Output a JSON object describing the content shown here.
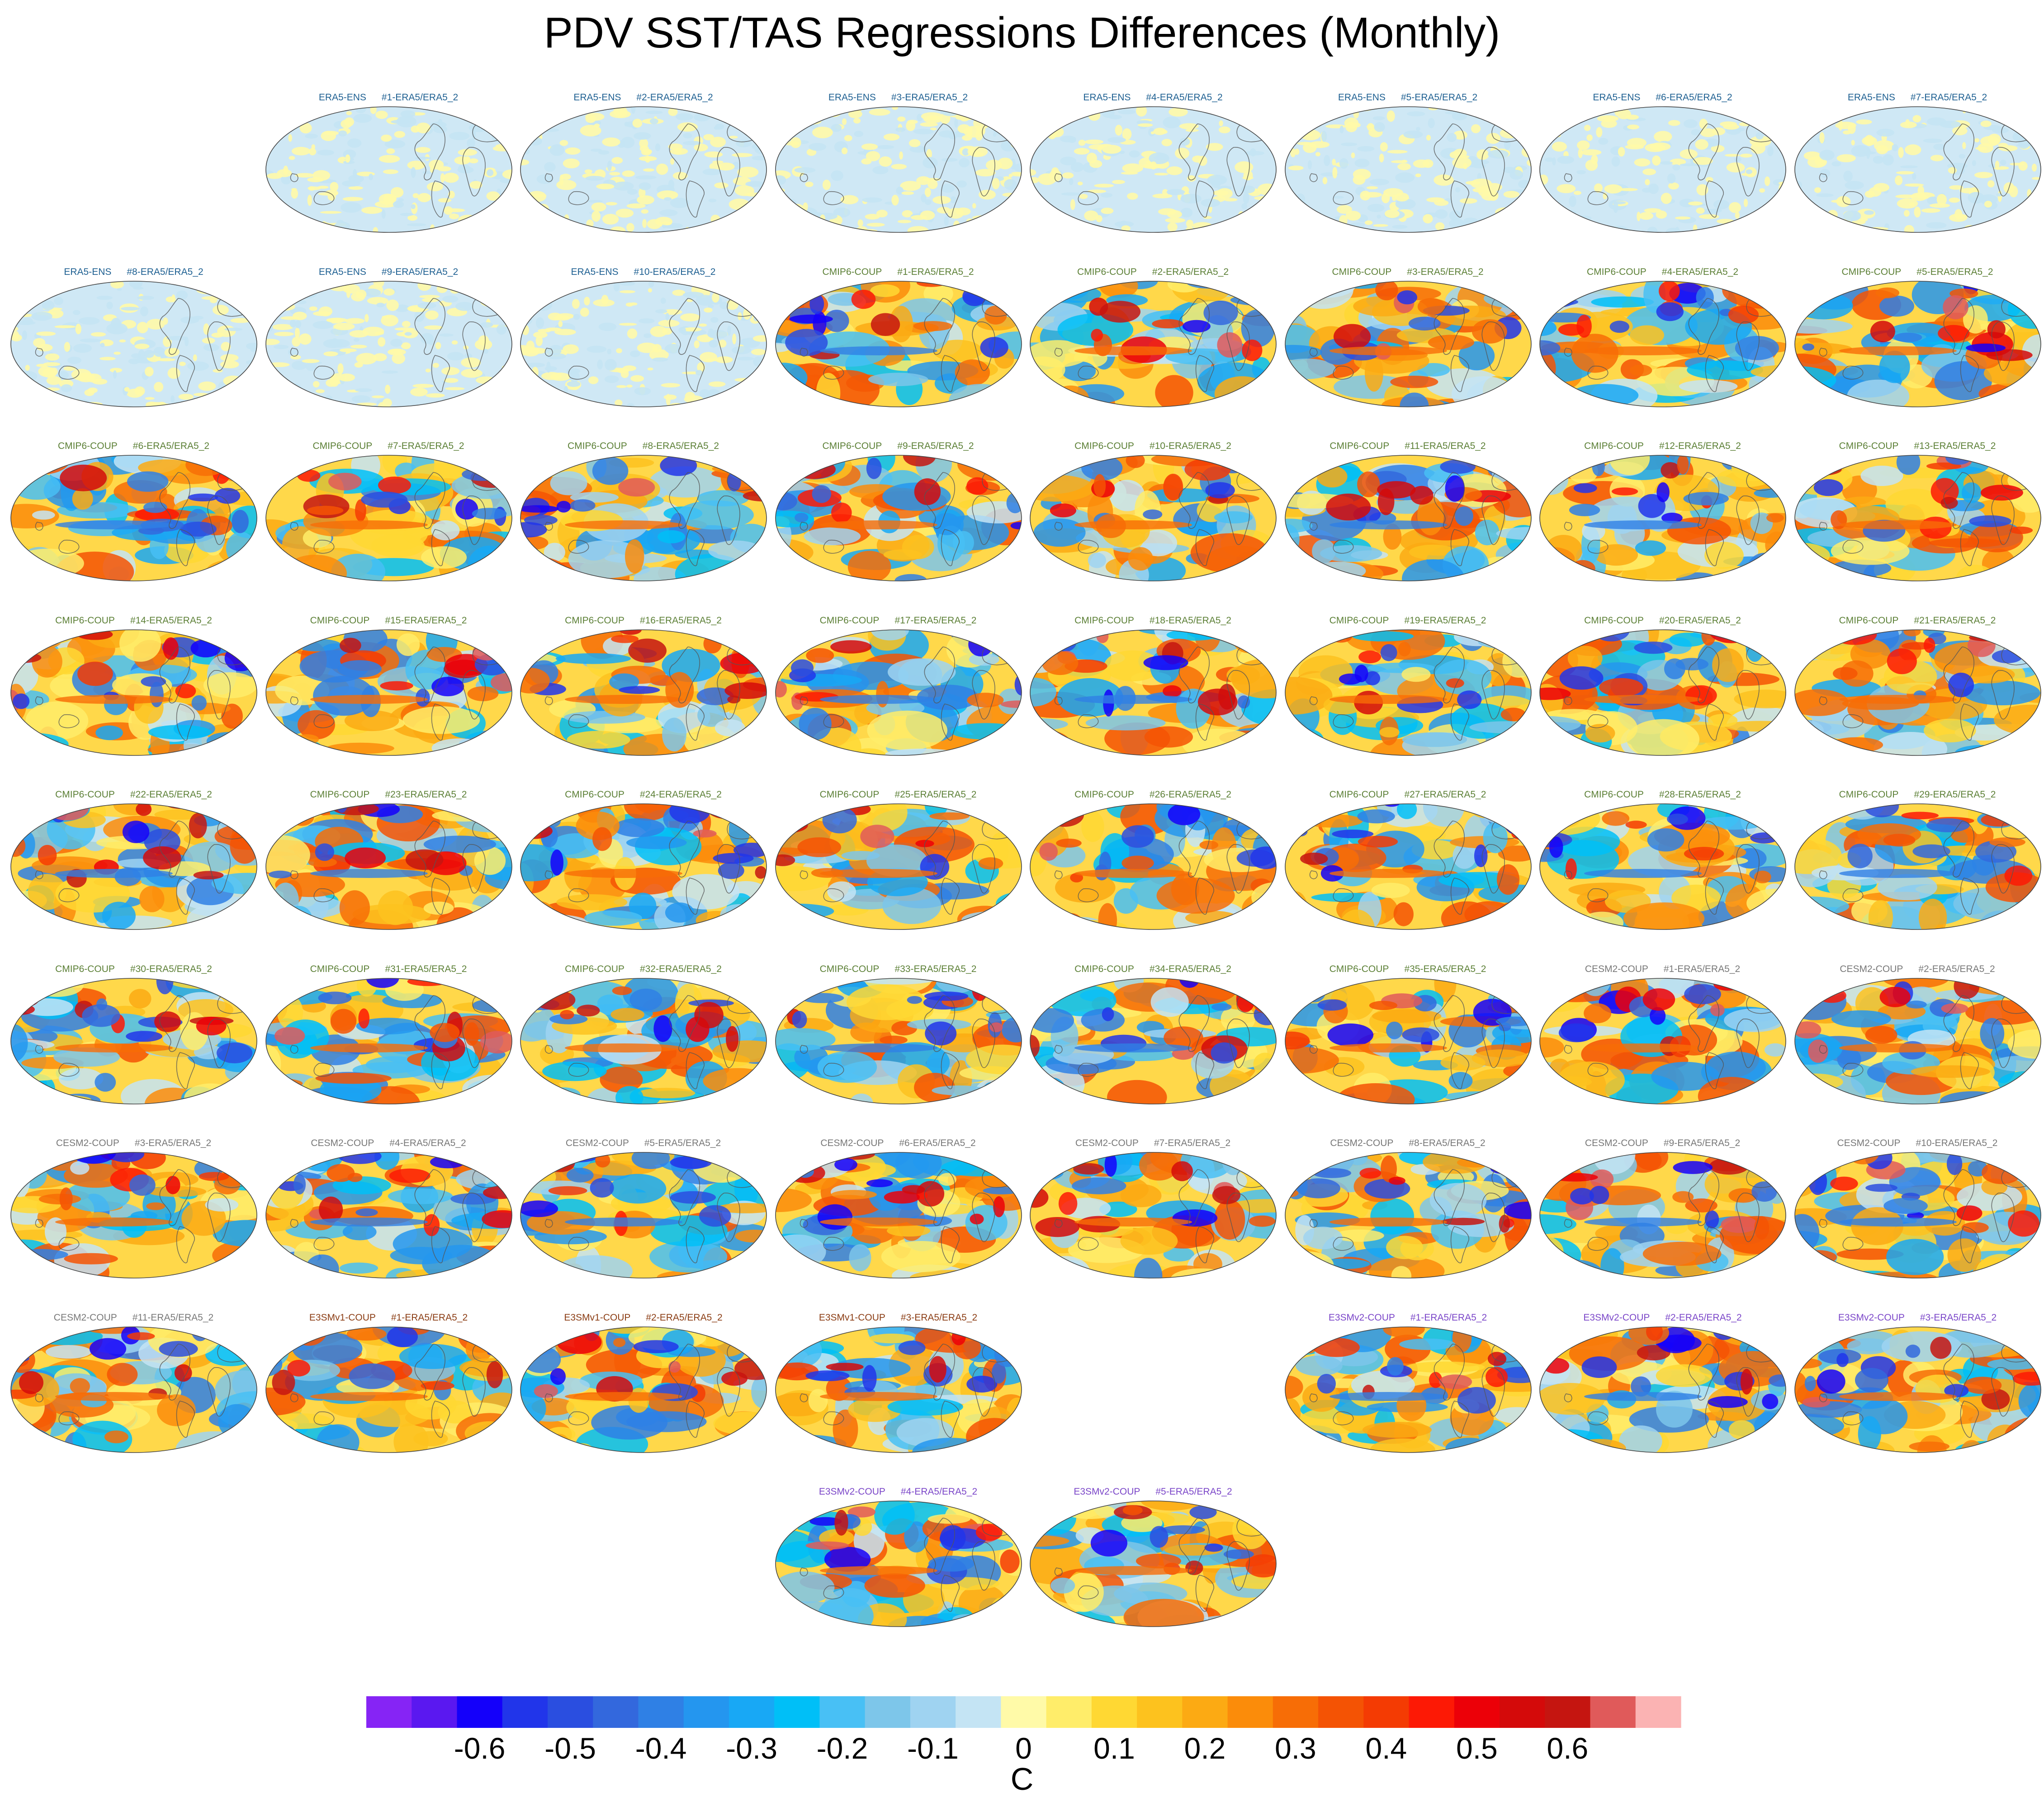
{
  "title": "PDV SST/TAS Regressions Differences (Monthly)",
  "colors": {
    "ERA5-ENS": "#1d5f91",
    "CMIP6-COUP": "#5b7f35",
    "CESM2-COUP": "#777777",
    "E3SMv1-COUP": "#8a3b12",
    "E3SMv2-COUP": "#7a45c8"
  },
  "panels": [
    {
      "ens": "ERA5-ENS",
      "member": "#1-ERA5/ERA5_2",
      "row": 0,
      "col": 1
    },
    {
      "ens": "ERA5-ENS",
      "member": "#2-ERA5/ERA5_2",
      "row": 0,
      "col": 2
    },
    {
      "ens": "ERA5-ENS",
      "member": "#3-ERA5/ERA5_2",
      "row": 0,
      "col": 3
    },
    {
      "ens": "ERA5-ENS",
      "member": "#4-ERA5/ERA5_2",
      "row": 0,
      "col": 4
    },
    {
      "ens": "ERA5-ENS",
      "member": "#5-ERA5/ERA5_2",
      "row": 0,
      "col": 5
    },
    {
      "ens": "ERA5-ENS",
      "member": "#6-ERA5/ERA5_2",
      "row": 0,
      "col": 6
    },
    {
      "ens": "ERA5-ENS",
      "member": "#7-ERA5/ERA5_2",
      "row": 0,
      "col": 7
    },
    {
      "ens": "ERA5-ENS",
      "member": "#8-ERA5/ERA5_2",
      "row": 1,
      "col": 0
    },
    {
      "ens": "ERA5-ENS",
      "member": "#9-ERA5/ERA5_2",
      "row": 1,
      "col": 1
    },
    {
      "ens": "ERA5-ENS",
      "member": "#10-ERA5/ERA5_2",
      "row": 1,
      "col": 2
    },
    {
      "ens": "CMIP6-COUP",
      "member": "#1-ERA5/ERA5_2",
      "row": 1,
      "col": 3
    },
    {
      "ens": "CMIP6-COUP",
      "member": "#2-ERA5/ERA5_2",
      "row": 1,
      "col": 4
    },
    {
      "ens": "CMIP6-COUP",
      "member": "#3-ERA5/ERA5_2",
      "row": 1,
      "col": 5
    },
    {
      "ens": "CMIP6-COUP",
      "member": "#4-ERA5/ERA5_2",
      "row": 1,
      "col": 6
    },
    {
      "ens": "CMIP6-COUP",
      "member": "#5-ERA5/ERA5_2",
      "row": 1,
      "col": 7
    },
    {
      "ens": "CMIP6-COUP",
      "member": "#6-ERA5/ERA5_2",
      "row": 2,
      "col": 0
    },
    {
      "ens": "CMIP6-COUP",
      "member": "#7-ERA5/ERA5_2",
      "row": 2,
      "col": 1
    },
    {
      "ens": "CMIP6-COUP",
      "member": "#8-ERA5/ERA5_2",
      "row": 2,
      "col": 2
    },
    {
      "ens": "CMIP6-COUP",
      "member": "#9-ERA5/ERA5_2",
      "row": 2,
      "col": 3
    },
    {
      "ens": "CMIP6-COUP",
      "member": "#10-ERA5/ERA5_2",
      "row": 2,
      "col": 4
    },
    {
      "ens": "CMIP6-COUP",
      "member": "#11-ERA5/ERA5_2",
      "row": 2,
      "col": 5
    },
    {
      "ens": "CMIP6-COUP",
      "member": "#12-ERA5/ERA5_2",
      "row": 2,
      "col": 6
    },
    {
      "ens": "CMIP6-COUP",
      "member": "#13-ERA5/ERA5_2",
      "row": 2,
      "col": 7
    },
    {
      "ens": "CMIP6-COUP",
      "member": "#14-ERA5/ERA5_2",
      "row": 3,
      "col": 0
    },
    {
      "ens": "CMIP6-COUP",
      "member": "#15-ERA5/ERA5_2",
      "row": 3,
      "col": 1
    },
    {
      "ens": "CMIP6-COUP",
      "member": "#16-ERA5/ERA5_2",
      "row": 3,
      "col": 2
    },
    {
      "ens": "CMIP6-COUP",
      "member": "#17-ERA5/ERA5_2",
      "row": 3,
      "col": 3
    },
    {
      "ens": "CMIP6-COUP",
      "member": "#18-ERA5/ERA5_2",
      "row": 3,
      "col": 4
    },
    {
      "ens": "CMIP6-COUP",
      "member": "#19-ERA5/ERA5_2",
      "row": 3,
      "col": 5
    },
    {
      "ens": "CMIP6-COUP",
      "member": "#20-ERA5/ERA5_2",
      "row": 3,
      "col": 6
    },
    {
      "ens": "CMIP6-COUP",
      "member": "#21-ERA5/ERA5_2",
      "row": 3,
      "col": 7
    },
    {
      "ens": "CMIP6-COUP",
      "member": "#22-ERA5/ERA5_2",
      "row": 4,
      "col": 0
    },
    {
      "ens": "CMIP6-COUP",
      "member": "#23-ERA5/ERA5_2",
      "row": 4,
      "col": 1
    },
    {
      "ens": "CMIP6-COUP",
      "member": "#24-ERA5/ERA5_2",
      "row": 4,
      "col": 2
    },
    {
      "ens": "CMIP6-COUP",
      "member": "#25-ERA5/ERA5_2",
      "row": 4,
      "col": 3
    },
    {
      "ens": "CMIP6-COUP",
      "member": "#26-ERA5/ERA5_2",
      "row": 4,
      "col": 4
    },
    {
      "ens": "CMIP6-COUP",
      "member": "#27-ERA5/ERA5_2",
      "row": 4,
      "col": 5
    },
    {
      "ens": "CMIP6-COUP",
      "member": "#28-ERA5/ERA5_2",
      "row": 4,
      "col": 6
    },
    {
      "ens": "CMIP6-COUP",
      "member": "#29-ERA5/ERA5_2",
      "row": 4,
      "col": 7
    },
    {
      "ens": "CMIP6-COUP",
      "member": "#30-ERA5/ERA5_2",
      "row": 5,
      "col": 0
    },
    {
      "ens": "CMIP6-COUP",
      "member": "#31-ERA5/ERA5_2",
      "row": 5,
      "col": 1
    },
    {
      "ens": "CMIP6-COUP",
      "member": "#32-ERA5/ERA5_2",
      "row": 5,
      "col": 2
    },
    {
      "ens": "CMIP6-COUP",
      "member": "#33-ERA5/ERA5_2",
      "row": 5,
      "col": 3
    },
    {
      "ens": "CMIP6-COUP",
      "member": "#34-ERA5/ERA5_2",
      "row": 5,
      "col": 4
    },
    {
      "ens": "CMIP6-COUP",
      "member": "#35-ERA5/ERA5_2",
      "row": 5,
      "col": 5
    },
    {
      "ens": "CESM2-COUP",
      "member": "#1-ERA5/ERA5_2",
      "row": 5,
      "col": 6
    },
    {
      "ens": "CESM2-COUP",
      "member": "#2-ERA5/ERA5_2",
      "row": 5,
      "col": 7
    },
    {
      "ens": "CESM2-COUP",
      "member": "#3-ERA5/ERA5_2",
      "row": 6,
      "col": 0
    },
    {
      "ens": "CESM2-COUP",
      "member": "#4-ERA5/ERA5_2",
      "row": 6,
      "col": 1
    },
    {
      "ens": "CESM2-COUP",
      "member": "#5-ERA5/ERA5_2",
      "row": 6,
      "col": 2
    },
    {
      "ens": "CESM2-COUP",
      "member": "#6-ERA5/ERA5_2",
      "row": 6,
      "col": 3
    },
    {
      "ens": "CESM2-COUP",
      "member": "#7-ERA5/ERA5_2",
      "row": 6,
      "col": 4
    },
    {
      "ens": "CESM2-COUP",
      "member": "#8-ERA5/ERA5_2",
      "row": 6,
      "col": 5
    },
    {
      "ens": "CESM2-COUP",
      "member": "#9-ERA5/ERA5_2",
      "row": 6,
      "col": 6
    },
    {
      "ens": "CESM2-COUP",
      "member": "#10-ERA5/ERA5_2",
      "row": 6,
      "col": 7
    },
    {
      "ens": "CESM2-COUP",
      "member": "#11-ERA5/ERA5_2",
      "row": 7,
      "col": 0
    },
    {
      "ens": "E3SMv1-COUP",
      "member": "#1-ERA5/ERA5_2",
      "row": 7,
      "col": 1
    },
    {
      "ens": "E3SMv1-COUP",
      "member": "#2-ERA5/ERA5_2",
      "row": 7,
      "col": 2
    },
    {
      "ens": "E3SMv1-COUP",
      "member": "#3-ERA5/ERA5_2",
      "row": 7,
      "col": 3
    },
    {
      "ens": "E3SMv2-COUP",
      "member": "#1-ERA5/ERA5_2",
      "row": 7,
      "col": 5
    },
    {
      "ens": "E3SMv2-COUP",
      "member": "#2-ERA5/ERA5_2",
      "row": 7,
      "col": 6
    },
    {
      "ens": "E3SMv2-COUP",
      "member": "#3-ERA5/ERA5_2",
      "row": 7,
      "col": 7
    },
    {
      "ens": "E3SMv2-COUP",
      "member": "#4-ERA5/ERA5_2",
      "row": 8,
      "col": 3
    },
    {
      "ens": "E3SMv2-COUP",
      "member": "#5-ERA5/ERA5_2",
      "row": 8,
      "col": 4
    }
  ],
  "colorbar": {
    "unit": "C",
    "colors": [
      "#8624f5",
      "#5a18f0",
      "#1400fa",
      "#2135ea",
      "#2a4ee0",
      "#3368dd",
      "#2f80e5",
      "#2496ef",
      "#18a8f5",
      "#00bff7",
      "#48c0f5",
      "#7dc6ea",
      "#9fd3f1",
      "#c4e4f4",
      "#fffaa8",
      "#ffed6a",
      "#ffd833",
      "#fdc21e",
      "#fcaa13",
      "#fb8c0a",
      "#f76d06",
      "#f45304",
      "#f43b03",
      "#fd1905",
      "#ec0008",
      "#d40a0a",
      "#c51510",
      "#e05a5a",
      "#fbb3b3"
    ],
    "tick_labels": [
      "-0.6",
      "-0.5",
      "-0.4",
      "-0.3",
      "-0.2",
      "-0.1",
      "0",
      "0.1",
      "0.2",
      "0.3",
      "0.4",
      "0.5",
      "0.6"
    ],
    "tick_values": [
      -0.6,
      -0.5,
      -0.4,
      -0.3,
      -0.2,
      -0.1,
      0,
      0.1,
      0.2,
      0.3,
      0.4,
      0.5,
      0.6
    ],
    "range": [
      -0.725,
      0.725
    ]
  },
  "chart_data": {
    "type": "heatmap",
    "title": "PDV SST/TAS Regressions Differences (Monthly)",
    "units": "C",
    "levels": [
      -0.7,
      -0.65,
      -0.6,
      -0.55,
      -0.5,
      -0.45,
      -0.4,
      -0.35,
      -0.3,
      -0.25,
      -0.2,
      -0.15,
      -0.1,
      -0.05,
      0,
      0.05,
      0.1,
      0.15,
      0.2,
      0.25,
      0.3,
      0.35,
      0.4,
      0.45,
      0.5,
      0.55,
      0.6,
      0.65
    ],
    "ensembles": [
      {
        "name": "ERA5-ENS",
        "members": 10
      },
      {
        "name": "CMIP6-COUP",
        "members": 35
      },
      {
        "name": "CESM2-COUP",
        "members": 11
      },
      {
        "name": "E3SMv1-COUP",
        "members": 3
      },
      {
        "name": "E3SMv2-COUP",
        "members": 5
      }
    ]
  }
}
